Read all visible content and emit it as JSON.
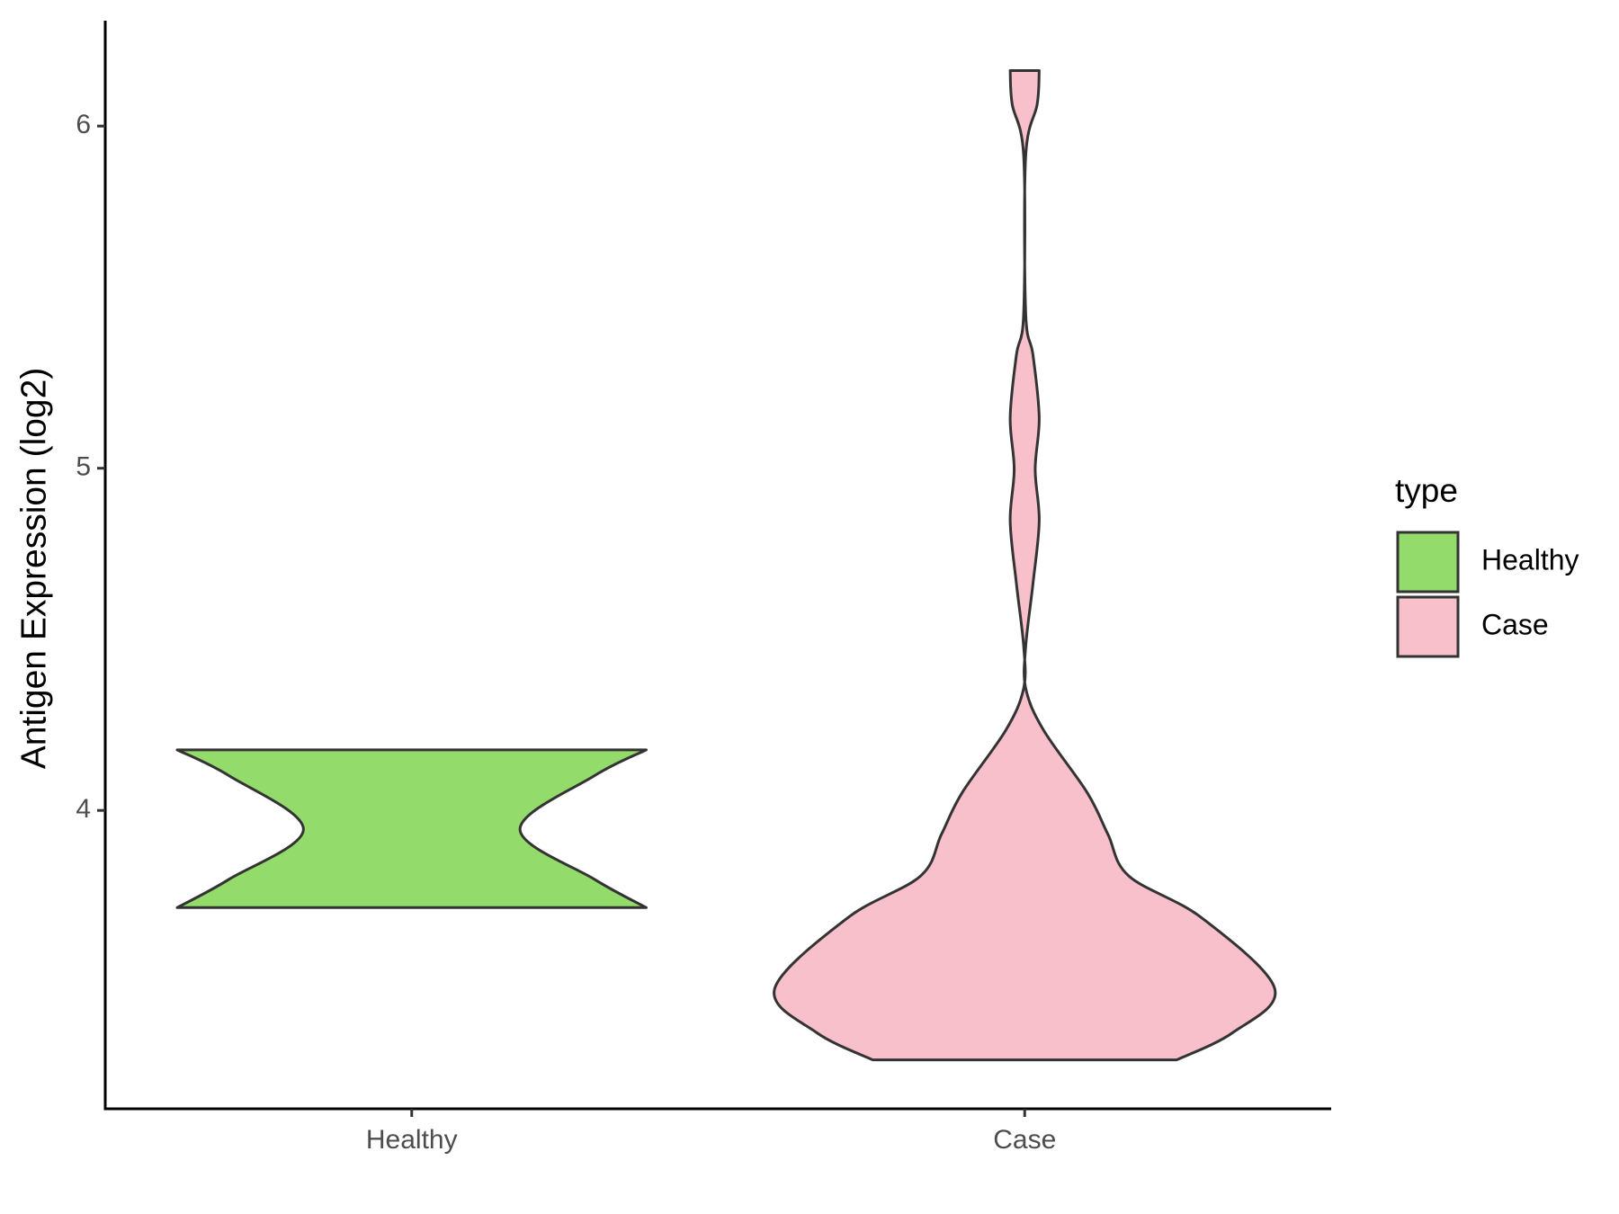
{
  "chart_data": {
    "type": "violin",
    "y_label": "Antigen Expression (log2)",
    "categories": [
      "Healthy",
      "Case"
    ],
    "ylim": [
      3.128,
      6.308
    ],
    "yticks": [
      4,
      5,
      6
    ],
    "legend_title": "type",
    "legend": "right",
    "series": [
      {
        "name": "Healthy",
        "color": "#93db6a",
        "values": [
          4.177,
          4.101,
          3.945,
          3.799,
          3.716
        ],
        "widths": [
          0.938,
          0.73,
          0.433,
          0.73,
          0.938
        ]
      },
      {
        "name": "Case",
        "color": "#f8c0cb",
        "values": [
          6.162,
          6.064,
          5.912,
          5.454,
          5.332,
          5.149,
          4.997,
          4.845,
          4.662,
          4.479,
          4.357,
          4.235,
          4.052,
          3.93,
          3.808,
          3.686,
          3.479,
          3.351,
          3.271
        ],
        "widths": [
          0.058,
          0.05,
          0.004,
          0.004,
          0.033,
          0.058,
          0.042,
          0.058,
          0.033,
          0.004,
          0.004,
          0.075,
          0.25,
          0.333,
          0.417,
          0.708,
          1,
          0.833,
          0.608
        ]
      }
    ]
  }
}
